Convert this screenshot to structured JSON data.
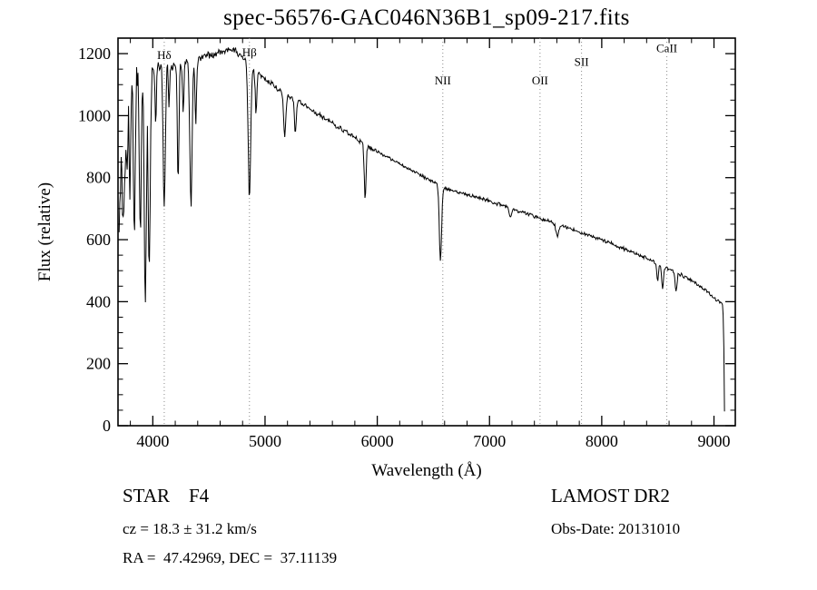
{
  "page": {
    "background": "#ffffff",
    "foreground": "#000000"
  },
  "footer": {
    "class_line": "STAR    F4",
    "survey": "LAMOST DR2",
    "cz_line": "cz = 18.3 ± 31.2 km/s",
    "obs_date_line": "Obs-Date: 20131010",
    "radec_line": "RA =  47.42969, DEC =  37.11139"
  },
  "chart_data": {
    "type": "line",
    "title": "spec-56576-GAC046N36B1_sp09-217.fits",
    "xlabel": "Wavelength (Å)",
    "ylabel": "Flux (relative)",
    "xlim": [
      3690,
      9190
    ],
    "ylim": [
      0,
      1250
    ],
    "xticks": [
      4000,
      5000,
      6000,
      7000,
      8000,
      9000
    ],
    "yticks": [
      0,
      200,
      400,
      600,
      800,
      1000,
      1200
    ],
    "x_minor_step": 200,
    "y_minor_step": 50,
    "grid": false,
    "legend": false,
    "line_color": "#000000",
    "marker_line_color": "#8a8a8a",
    "markers": [
      {
        "label": "Hδ",
        "x": 4102,
        "label_flux": 1183
      },
      {
        "label": "Hβ",
        "x": 4861,
        "label_flux": 1191
      },
      {
        "label": "NII",
        "x": 6584,
        "label_flux": 1100
      },
      {
        "label": "OII",
        "x": 7450,
        "label_flux": 1100
      },
      {
        "label": "SII",
        "x": 7820,
        "label_flux": 1160
      },
      {
        "label": "CaII",
        "x": 8580,
        "label_flux": 1205
      }
    ],
    "continuum": [
      [
        3700,
        620
      ],
      [
        3720,
        900
      ],
      [
        3760,
        1060
      ],
      [
        3800,
        1090
      ],
      [
        3850,
        1110
      ],
      [
        3900,
        1120
      ],
      [
        3950,
        1130
      ],
      [
        4000,
        1150
      ],
      [
        4100,
        1180
      ],
      [
        4200,
        1160
      ],
      [
        4300,
        1170
      ],
      [
        4400,
        1185
      ],
      [
        4500,
        1195
      ],
      [
        4600,
        1205
      ],
      [
        4700,
        1215
      ],
      [
        4800,
        1190
      ],
      [
        4900,
        1150
      ],
      [
        5000,
        1120
      ],
      [
        5100,
        1090
      ],
      [
        5200,
        1065
      ],
      [
        5300,
        1045
      ],
      [
        5400,
        1020
      ],
      [
        5500,
        1000
      ],
      [
        5600,
        975
      ],
      [
        5700,
        950
      ],
      [
        5800,
        930
      ],
      [
        5900,
        905
      ],
      [
        6000,
        885
      ],
      [
        6100,
        865
      ],
      [
        6200,
        845
      ],
      [
        6300,
        825
      ],
      [
        6400,
        805
      ],
      [
        6500,
        785
      ],
      [
        6600,
        765
      ],
      [
        6700,
        755
      ],
      [
        6800,
        745
      ],
      [
        6900,
        735
      ],
      [
        7000,
        725
      ],
      [
        7200,
        700
      ],
      [
        7400,
        675
      ],
      [
        7600,
        650
      ],
      [
        7800,
        625
      ],
      [
        8000,
        600
      ],
      [
        8200,
        570
      ],
      [
        8400,
        540
      ],
      [
        8600,
        505
      ],
      [
        8800,
        470
      ],
      [
        8950,
        430
      ],
      [
        9000,
        410
      ],
      [
        9060,
        400
      ],
      [
        9080,
        390
      ],
      [
        9088,
        250
      ],
      [
        9095,
        12
      ]
    ],
    "absorption_lines": [
      {
        "center": 3734,
        "depth": 280,
        "sigma": 6
      },
      {
        "center": 3750,
        "depth": 260,
        "sigma": 6
      },
      {
        "center": 3771,
        "depth": 300,
        "sigma": 7
      },
      {
        "center": 3798,
        "depth": 350,
        "sigma": 7
      },
      {
        "center": 3835,
        "depth": 430,
        "sigma": 8
      },
      {
        "center": 3889,
        "depth": 520,
        "sigma": 8
      },
      {
        "center": 3933,
        "depth": 720,
        "sigma": 9
      },
      {
        "center": 3968,
        "depth": 650,
        "sigma": 9
      },
      {
        "center": 4026,
        "depth": 180,
        "sigma": 6
      },
      {
        "center": 4102,
        "depth": 480,
        "sigma": 10
      },
      {
        "center": 4144,
        "depth": 140,
        "sigma": 6
      },
      {
        "center": 4226,
        "depth": 380,
        "sigma": 7
      },
      {
        "center": 4271,
        "depth": 160,
        "sigma": 6
      },
      {
        "center": 4340,
        "depth": 470,
        "sigma": 10
      },
      {
        "center": 4383,
        "depth": 200,
        "sigma": 7
      },
      {
        "center": 4861,
        "depth": 430,
        "sigma": 11
      },
      {
        "center": 4920,
        "depth": 140,
        "sigma": 7
      },
      {
        "center": 5175,
        "depth": 140,
        "sigma": 10
      },
      {
        "center": 5270,
        "depth": 110,
        "sigma": 8
      },
      {
        "center": 5892,
        "depth": 180,
        "sigma": 8
      },
      {
        "center": 6563,
        "depth": 240,
        "sigma": 10
      },
      {
        "center": 7186,
        "depth": 30,
        "sigma": 10
      },
      {
        "center": 7605,
        "depth": 40,
        "sigma": 12
      },
      {
        "center": 8498,
        "depth": 55,
        "sigma": 7
      },
      {
        "center": 8542,
        "depth": 75,
        "sigma": 8
      },
      {
        "center": 8662,
        "depth": 65,
        "sigma": 8
      }
    ],
    "noise": {
      "seed": 20131010,
      "segments": [
        [
          3900,
          95
        ],
        [
          4000,
          55
        ],
        [
          4500,
          22
        ],
        [
          5000,
          15
        ],
        [
          6000,
          10
        ],
        [
          9200,
          7
        ]
      ]
    },
    "sampling": {
      "start": 3700,
      "end": 9095,
      "step": 6
    }
  }
}
